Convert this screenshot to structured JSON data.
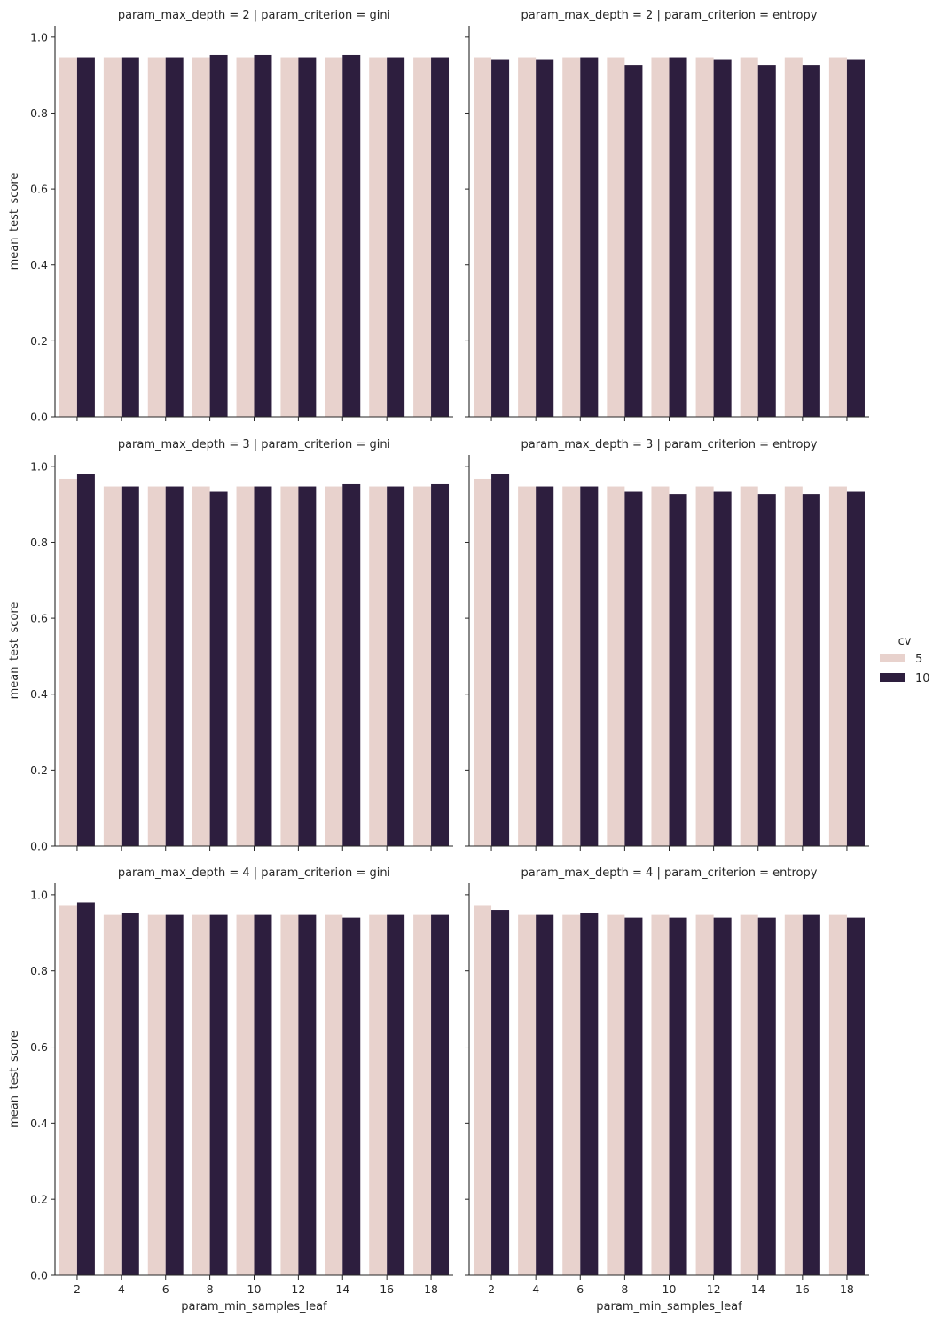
{
  "chart_data": {
    "type": "bar",
    "layout": "facet-grid",
    "x_label": "param_min_samples_leaf",
    "y_label": "mean_test_score",
    "categories": [
      "2",
      "4",
      "6",
      "8",
      "10",
      "12",
      "14",
      "16",
      "18"
    ],
    "ylim": [
      0,
      1.03
    ],
    "yticks": [
      "0.0",
      "0.2",
      "0.4",
      "0.6",
      "0.8",
      "1.0"
    ],
    "grid": false,
    "legend": {
      "title": "cv",
      "placement": "right",
      "entries": [
        {
          "label": "5",
          "color": "#e8d2cd"
        },
        {
          "label": "10",
          "color": "#2d1e3e"
        }
      ]
    },
    "facets": [
      {
        "title": "param_max_depth = 2 | param_criterion = gini",
        "series": [
          {
            "name": "5",
            "values": [
              0.947,
              0.947,
              0.947,
              0.947,
              0.947,
              0.947,
              0.947,
              0.947,
              0.947
            ]
          },
          {
            "name": "10",
            "values": [
              0.947,
              0.947,
              0.947,
              0.953,
              0.953,
              0.947,
              0.953,
              0.947,
              0.947
            ]
          }
        ]
      },
      {
        "title": "param_max_depth = 2 | param_criterion = entropy",
        "series": [
          {
            "name": "5",
            "values": [
              0.947,
              0.947,
              0.947,
              0.947,
              0.947,
              0.947,
              0.947,
              0.947,
              0.947
            ]
          },
          {
            "name": "10",
            "values": [
              0.94,
              0.94,
              0.947,
              0.927,
              0.947,
              0.94,
              0.927,
              0.927,
              0.94
            ]
          }
        ]
      },
      {
        "title": "param_max_depth = 3 | param_criterion = gini",
        "series": [
          {
            "name": "5",
            "values": [
              0.967,
              0.947,
              0.947,
              0.947,
              0.947,
              0.947,
              0.947,
              0.947,
              0.947
            ]
          },
          {
            "name": "10",
            "values": [
              0.98,
              0.947,
              0.947,
              0.933,
              0.947,
              0.947,
              0.953,
              0.947,
              0.953
            ]
          }
        ]
      },
      {
        "title": "param_max_depth = 3 | param_criterion = entropy",
        "series": [
          {
            "name": "5",
            "values": [
              0.967,
              0.947,
              0.947,
              0.947,
              0.947,
              0.947,
              0.947,
              0.947,
              0.947
            ]
          },
          {
            "name": "10",
            "values": [
              0.98,
              0.947,
              0.947,
              0.933,
              0.927,
              0.933,
              0.927,
              0.927,
              0.933
            ]
          }
        ]
      },
      {
        "title": "param_max_depth = 4 | param_criterion = gini",
        "series": [
          {
            "name": "5",
            "values": [
              0.973,
              0.947,
              0.947,
              0.947,
              0.947,
              0.947,
              0.947,
              0.947,
              0.947
            ]
          },
          {
            "name": "10",
            "values": [
              0.98,
              0.953,
              0.947,
              0.947,
              0.947,
              0.947,
              0.94,
              0.947,
              0.947
            ]
          }
        ]
      },
      {
        "title": "param_max_depth = 4 | param_criterion = entropy",
        "series": [
          {
            "name": "5",
            "values": [
              0.973,
              0.947,
              0.947,
              0.947,
              0.947,
              0.947,
              0.947,
              0.947,
              0.947
            ]
          },
          {
            "name": "10",
            "values": [
              0.96,
              0.947,
              0.953,
              0.94,
              0.94,
              0.94,
              0.94,
              0.947,
              0.94
            ]
          }
        ]
      }
    ]
  }
}
